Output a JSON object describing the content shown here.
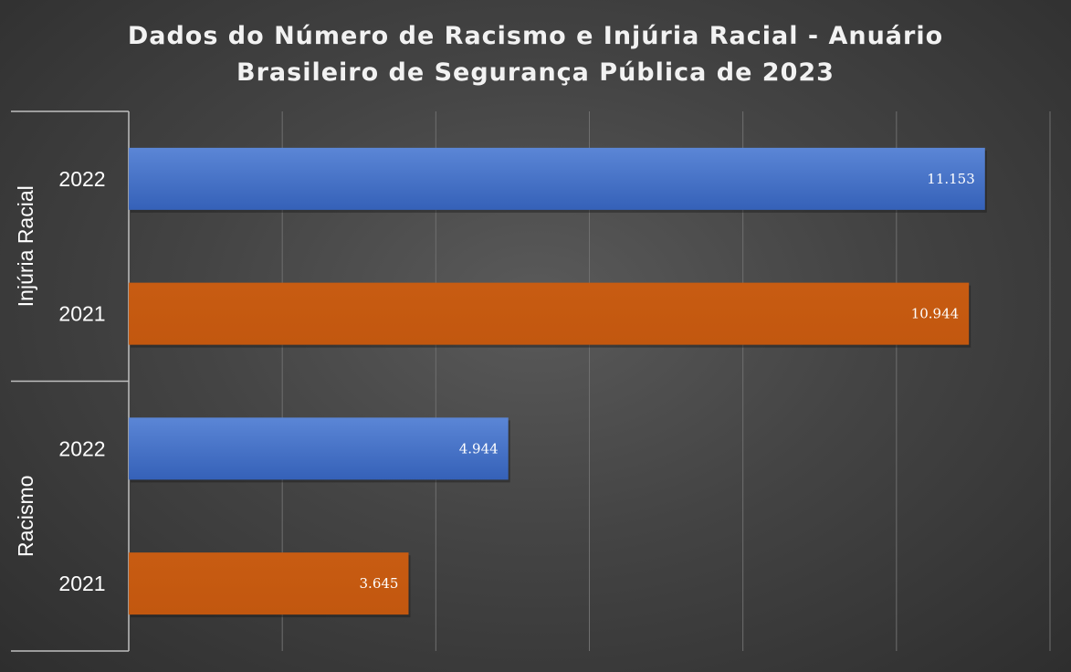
{
  "chart_data": {
    "type": "bar",
    "orientation": "horizontal",
    "title": "Dados do Número de Racismo e Injúria Racial - Anuário Brasileiro de Segurança Pública de 2023",
    "title_lines": [
      "Dados do Número de Racismo e Injúria Racial - Anuário",
      "Brasileiro de Segurança Pública de 2023"
    ],
    "groups": [
      {
        "name": "Injúria Racial",
        "bars": [
          {
            "year": "2022",
            "value": 11153,
            "label": "11.153"
          },
          {
            "year": "2021",
            "value": 10944,
            "label": "10.944"
          }
        ]
      },
      {
        "name": "Racismo",
        "bars": [
          {
            "year": "2022",
            "value": 4944,
            "label": "4.944"
          },
          {
            "year": "2021",
            "value": 3645,
            "label": "3.645"
          }
        ]
      }
    ],
    "xlim": [
      0,
      12000
    ],
    "grid": true,
    "legend": "none",
    "colors": {
      "2022": "#4472c4",
      "2021": "#c55a11"
    }
  }
}
